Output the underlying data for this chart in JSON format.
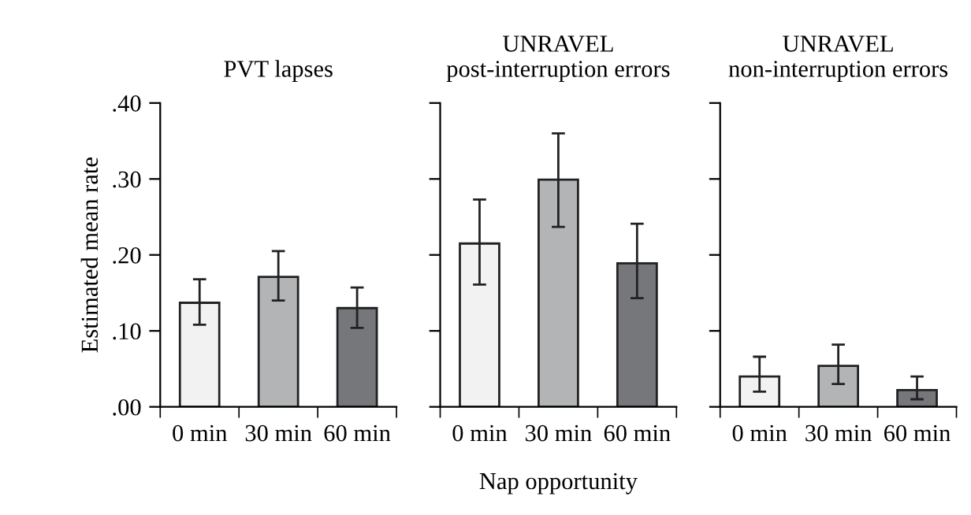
{
  "chart_data": [
    {
      "type": "bar",
      "title": "PVT lapses",
      "ylabel": "Estimated mean rate",
      "categories": [
        "0 min",
        "30 min",
        "60 min"
      ],
      "values": [
        0.137,
        0.171,
        0.13
      ],
      "colors": [
        "#f2f2f2",
        "#b3b4b6",
        "#76777a"
      ],
      "errors": [
        [
          0.108,
          0.168
        ],
        [
          0.14,
          0.205
        ],
        [
          0.104,
          0.157
        ]
      ],
      "ylim": [
        0,
        0.4
      ],
      "yticks": [
        {
          "value": 0,
          "label": ".00"
        },
        {
          "value": 0.1,
          "label": ".10"
        },
        {
          "value": 0.2,
          "label": ".20"
        },
        {
          "value": 0.3,
          "label": ".30"
        },
        {
          "value": 0.4,
          "label": ".40"
        }
      ],
      "grid": false
    },
    {
      "type": "bar",
      "title": "UNRAVEL post-interruption errors",
      "xlabel": "Nap opportunity",
      "categories": [
        "0 min",
        "30 min",
        "60 min"
      ],
      "values": [
        0.215,
        0.299,
        0.189
      ],
      "colors": [
        "#f2f2f2",
        "#b3b4b6",
        "#76777a"
      ],
      "errors": [
        [
          0.161,
          0.273
        ],
        [
          0.237,
          0.36
        ],
        [
          0.143,
          0.241
        ]
      ],
      "ylim": [
        0,
        0.4
      ],
      "yticks": [
        {
          "value": 0,
          "label": null
        },
        {
          "value": 0.1,
          "label": null
        },
        {
          "value": 0.2,
          "label": null
        },
        {
          "value": 0.3,
          "label": null
        },
        {
          "value": 0.4,
          "label": null
        }
      ],
      "tick_labels": "x",
      "grid": false
    },
    {
      "type": "bar",
      "title": "UNRAVEL non-interruption errors",
      "categories": [
        "0 min",
        "30 min",
        "60 min"
      ],
      "values": [
        0.04,
        0.054,
        0.022
      ],
      "colors": [
        "#f2f2f2",
        "#b3b4b6",
        "#76777a"
      ],
      "errors": [
        [
          0.02,
          0.066
        ],
        [
          0.03,
          0.082
        ],
        [
          0.01,
          0.04
        ]
      ],
      "ylim": [
        0,
        0.4
      ],
      "yticks": [
        {
          "value": 0,
          "label": null
        },
        {
          "value": 0.1,
          "label": null
        },
        {
          "value": 0.2,
          "label": null
        },
        {
          "value": 0.3,
          "label": null
        },
        {
          "value": 0.4,
          "label": null
        }
      ],
      "tick_labels": "x",
      "grid": false
    }
  ]
}
